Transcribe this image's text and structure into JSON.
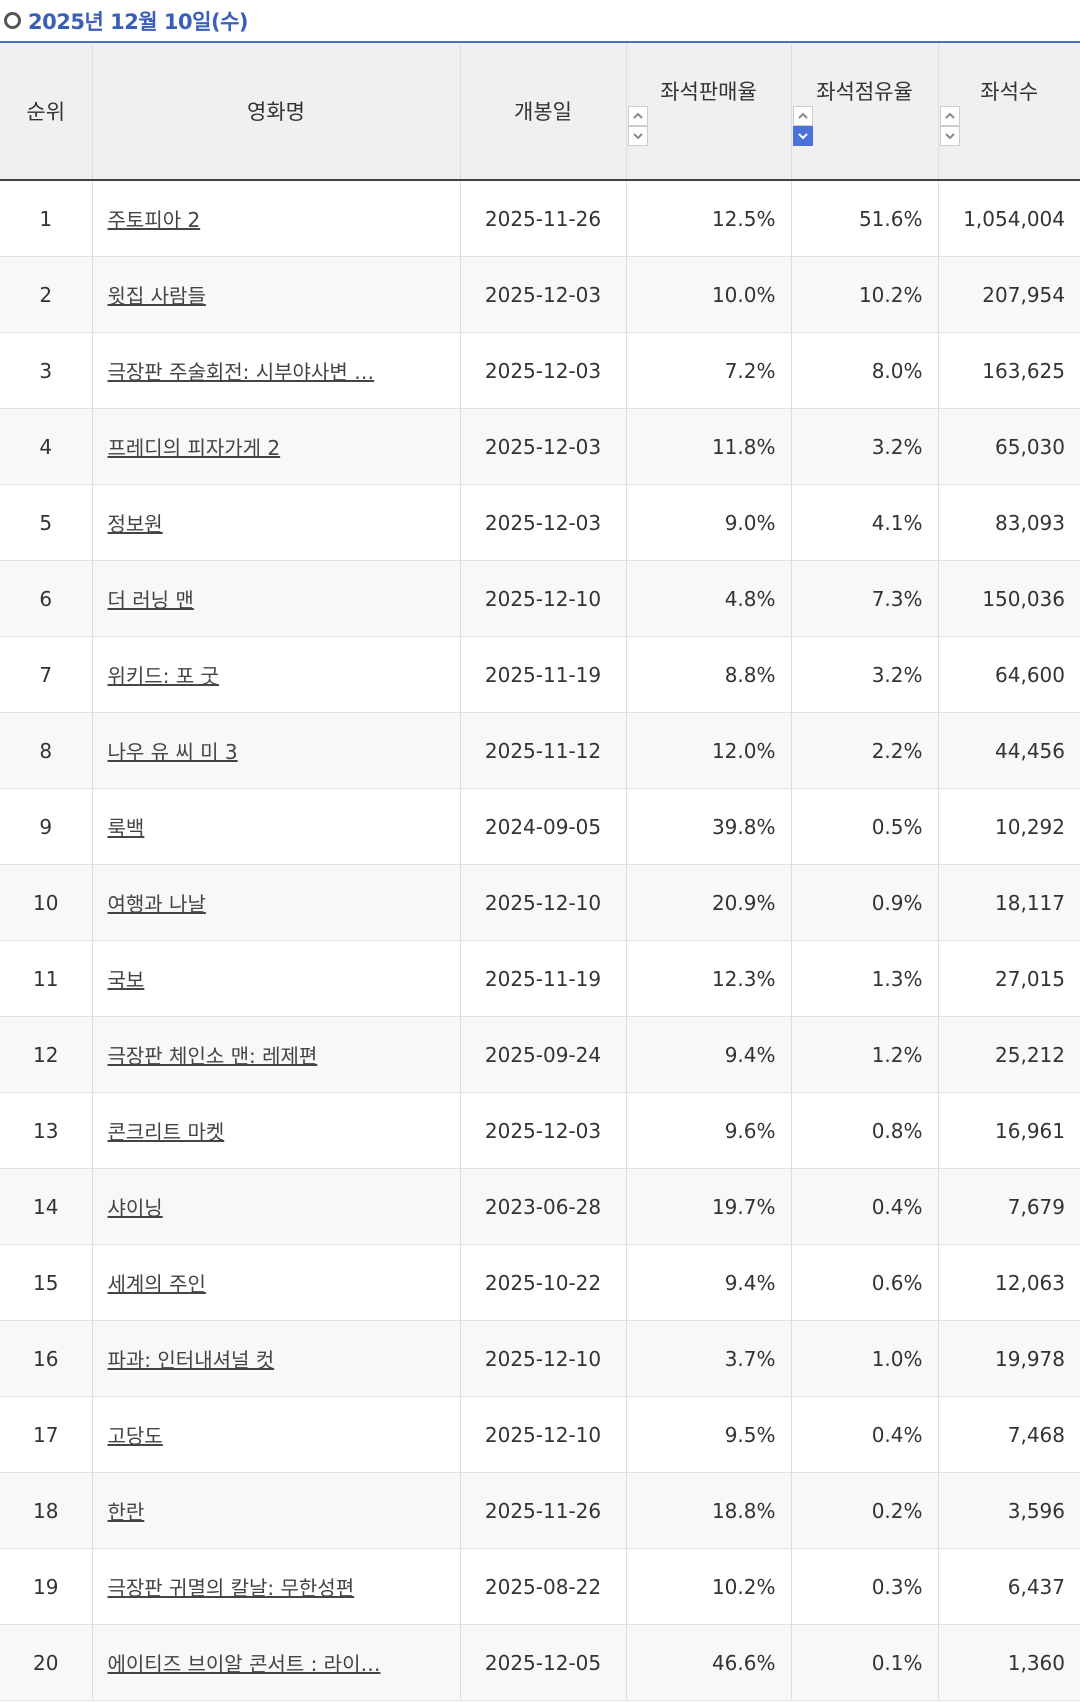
{
  "header": {
    "title": "2025년 12월 10일(수)"
  },
  "table": {
    "columns": [
      "순위",
      "영화명",
      "개봉일",
      "좌석판매율",
      "좌석점유율",
      "좌석수"
    ],
    "rows": [
      [
        "1",
        "주토피아 2",
        "2025-11-26",
        "12.5%",
        "51.6%",
        "1,054,004"
      ],
      [
        "2",
        "윗집 사람들",
        "2025-12-03",
        "10.0%",
        "10.2%",
        "207,954"
      ],
      [
        "3",
        "극장판 주술회전: 시부야사변 …",
        "2025-12-03",
        "7.2%",
        "8.0%",
        "163,625"
      ],
      [
        "4",
        "프레디의 피자가게 2",
        "2025-12-03",
        "11.8%",
        "3.2%",
        "65,030"
      ],
      [
        "5",
        "정보원",
        "2025-12-03",
        "9.0%",
        "4.1%",
        "83,093"
      ],
      [
        "6",
        "더 러닝 맨",
        "2025-12-10",
        "4.8%",
        "7.3%",
        "150,036"
      ],
      [
        "7",
        "위키드: 포 굿",
        "2025-11-19",
        "8.8%",
        "3.2%",
        "64,600"
      ],
      [
        "8",
        "나우 유 씨 미 3",
        "2025-11-12",
        "12.0%",
        "2.2%",
        "44,456"
      ],
      [
        "9",
        "룩백",
        "2024-09-05",
        "39.8%",
        "0.5%",
        "10,292"
      ],
      [
        "10",
        "여행과 나날",
        "2025-12-10",
        "20.9%",
        "0.9%",
        "18,117"
      ],
      [
        "11",
        "국보",
        "2025-11-19",
        "12.3%",
        "1.3%",
        "27,015"
      ],
      [
        "12",
        "극장판 체인소 맨: 레제편",
        "2025-09-24",
        "9.4%",
        "1.2%",
        "25,212"
      ],
      [
        "13",
        "콘크리트 마켓",
        "2025-12-03",
        "9.6%",
        "0.8%",
        "16,961"
      ],
      [
        "14",
        "샤이닝",
        "2023-06-28",
        "19.7%",
        "0.4%",
        "7,679"
      ],
      [
        "15",
        "세계의 주인",
        "2025-10-22",
        "9.4%",
        "0.6%",
        "12,063"
      ],
      [
        "16",
        "파과: 인터내셔널 컷",
        "2025-12-10",
        "3.7%",
        "1.0%",
        "19,978"
      ],
      [
        "17",
        "고당도",
        "2025-12-10",
        "9.5%",
        "0.4%",
        "7,468"
      ],
      [
        "18",
        "한란",
        "2025-11-26",
        "18.8%",
        "0.2%",
        "3,596"
      ],
      [
        "19",
        "극장판 귀멸의 칼날: 무한성편",
        "2025-08-22",
        "10.2%",
        "0.3%",
        "6,437"
      ],
      [
        "20",
        "에이티즈 브이알 콘서트 : 라이…",
        "2025-12-05",
        "46.6%",
        "0.1%",
        "1,360"
      ]
    ]
  }
}
